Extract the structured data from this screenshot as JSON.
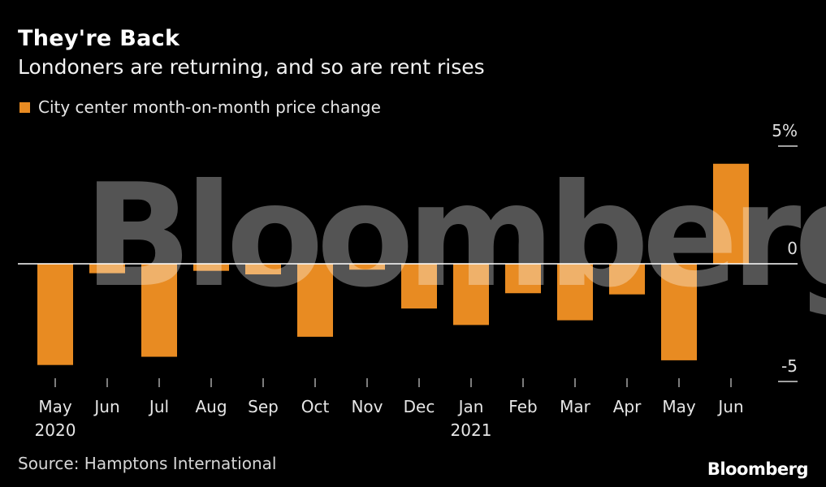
{
  "title": "They're Back",
  "subtitle": "Londoners are returning, and so are rent rises",
  "legend": {
    "label": "City center month-on-month price change",
    "color": "#e88b22"
  },
  "source": "Source: Hamptons International",
  "brand": "Bloomberg",
  "watermark": "Bloomberg",
  "chart_data": {
    "type": "bar",
    "title": "They're Back",
    "subtitle": "Londoners are returning, and so are rent rises",
    "xlabel": "",
    "ylabel": "",
    "ylim": [
      -5,
      5
    ],
    "yticks": [
      {
        "value": 5,
        "label": "5%"
      },
      {
        "value": 0,
        "label": "0"
      },
      {
        "value": -5,
        "label": "-5"
      }
    ],
    "categories": [
      "May",
      "Jun",
      "Jul",
      "Aug",
      "Sep",
      "Oct",
      "Nov",
      "Dec",
      "Jan",
      "Feb",
      "Mar",
      "Apr",
      "May",
      "Jun"
    ],
    "year_labels": [
      "2020",
      "",
      "",
      "",
      "",
      "",
      "",
      "",
      "2021",
      "",
      "",
      "",
      "",
      ""
    ],
    "series": [
      {
        "name": "City center month-on-month price change",
        "color": "#e88b22",
        "values": [
          -4.3,
          -0.4,
          -3.95,
          -0.3,
          -0.45,
          -3.1,
          -0.25,
          -1.9,
          -2.6,
          -1.25,
          -2.4,
          -1.3,
          -4.1,
          4.25
        ]
      }
    ]
  }
}
